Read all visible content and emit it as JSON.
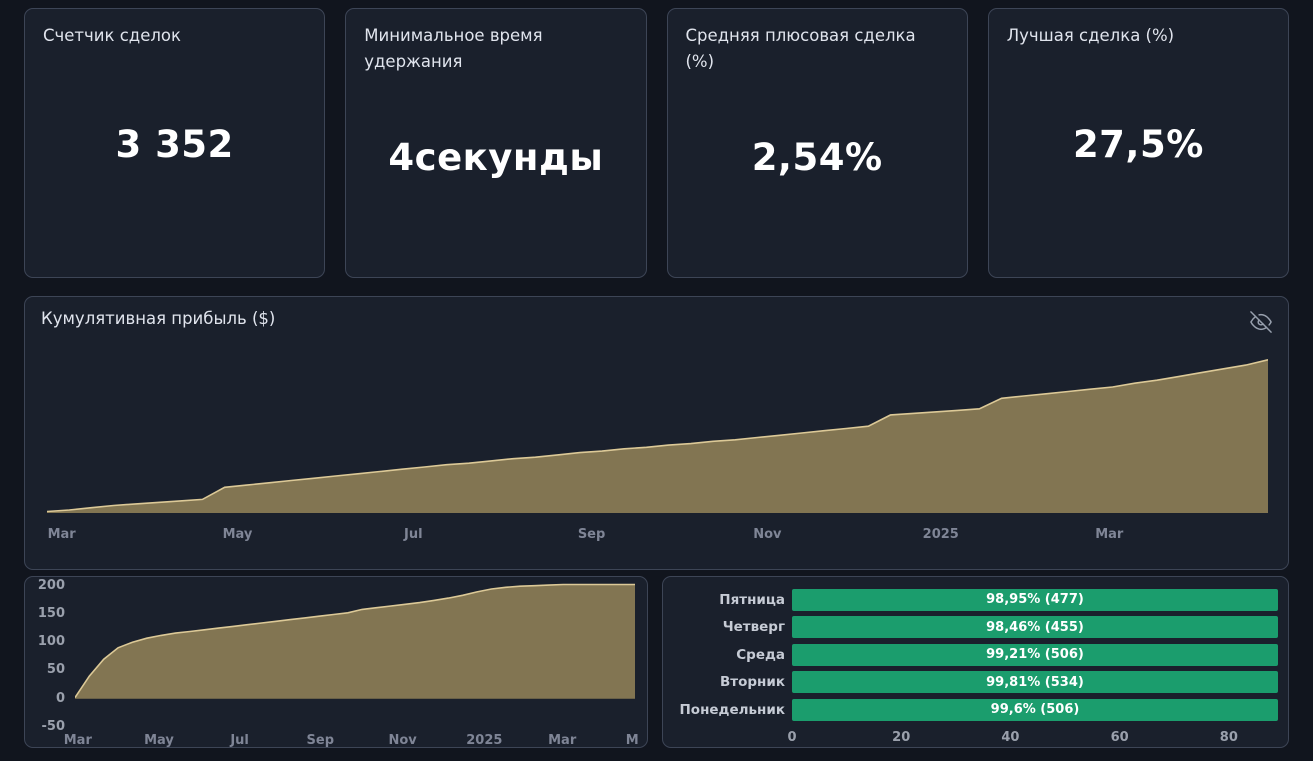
{
  "cards": [
    {
      "title": "Счетчик сделок",
      "value": "3 352"
    },
    {
      "title": "Минимальное время удержания",
      "value": "4секунды"
    },
    {
      "title": "Средняя плюсовая сделка (%)",
      "value": "2,54%"
    },
    {
      "title": "Лучшая сделка (%)",
      "value": "27,5%"
    }
  ],
  "main_panel": {
    "title": "Кумулятивная прибыль ($)",
    "hide_icon": "eye-off-icon"
  },
  "colors": {
    "page_bg": "#11151e",
    "panel_bg": "#1a202c",
    "panel_border": "#3d4556",
    "area_fill": "#887a54",
    "area_line": "#dcc997",
    "bar_green": "#1b9d6d",
    "axis_text": "#7f8596"
  },
  "chart_data": [
    {
      "type": "area",
      "title": "Кумулятивная прибыль ($)",
      "ylabel": "",
      "xlabel": "",
      "ylim": [
        0,
        212
      ],
      "grid": false,
      "values": [
        2,
        4,
        7,
        10,
        12,
        14,
        16,
        18,
        34,
        37,
        40,
        43,
        46,
        49,
        52,
        55,
        58,
        61,
        64,
        66,
        69,
        72,
        74,
        77,
        80,
        82,
        85,
        87,
        90,
        92,
        95,
        97,
        100,
        103,
        106,
        109,
        112,
        115,
        130,
        132,
        134,
        136,
        138,
        152,
        155,
        158,
        161,
        164,
        167,
        172,
        176,
        181,
        186,
        191,
        196,
        203
      ],
      "x_labels": [
        {
          "label": "Mar",
          "pos": 0.012
        },
        {
          "label": "May",
          "pos": 0.156
        },
        {
          "label": "Jul",
          "pos": 0.3
        },
        {
          "label": "Sep",
          "pos": 0.446
        },
        {
          "label": "Nov",
          "pos": 0.59
        },
        {
          "label": "2025",
          "pos": 0.732
        },
        {
          "label": "Mar",
          "pos": 0.87
        }
      ],
      "fill_color": "#887a54",
      "line_color": "#dcc997"
    },
    {
      "type": "area",
      "title": "",
      "ylim": [
        -50,
        210
      ],
      "clip_max": 202,
      "grid": false,
      "y_ticks": [
        200,
        150,
        100,
        50,
        0,
        -50
      ],
      "values": [
        2,
        40,
        70,
        90,
        100,
        107,
        112,
        116,
        119,
        122,
        125,
        128,
        131,
        134,
        137,
        140,
        143,
        146,
        149,
        152,
        158,
        161,
        164,
        167,
        170,
        174,
        178,
        183,
        189,
        194,
        197,
        199,
        200,
        201,
        202,
        202,
        203,
        203,
        204,
        204
      ],
      "x_labels": [
        {
          "label": "Mar",
          "pos": 0.005
        },
        {
          "label": "May",
          "pos": 0.15
        },
        {
          "label": "Jul",
          "pos": 0.294
        },
        {
          "label": "Sep",
          "pos": 0.438
        },
        {
          "label": "Nov",
          "pos": 0.585
        },
        {
          "label": "2025",
          "pos": 0.731
        },
        {
          "label": "Mar",
          "pos": 0.87
        },
        {
          "label": "M",
          "pos": 0.995
        }
      ],
      "fill_color": "#887a54",
      "line_color": "#dcc997"
    },
    {
      "type": "bar",
      "orientation": "horizontal",
      "categories": [
        "Пятница",
        "Четверг",
        "Среда",
        "Вторник",
        "Понедельник"
      ],
      "values": [
        98.95,
        98.46,
        99.21,
        99.81,
        99.6
      ],
      "counts": [
        477,
        455,
        506,
        534,
        506
      ],
      "bar_labels": [
        "98,95% (477)",
        "98,46% (455)",
        "99,21% (506)",
        "99,81% (534)",
        "99,6% (506)"
      ],
      "x_ticks": [
        0,
        20,
        40,
        60,
        80
      ],
      "x_max": 89,
      "bar_color": "#1b9d6d"
    }
  ]
}
